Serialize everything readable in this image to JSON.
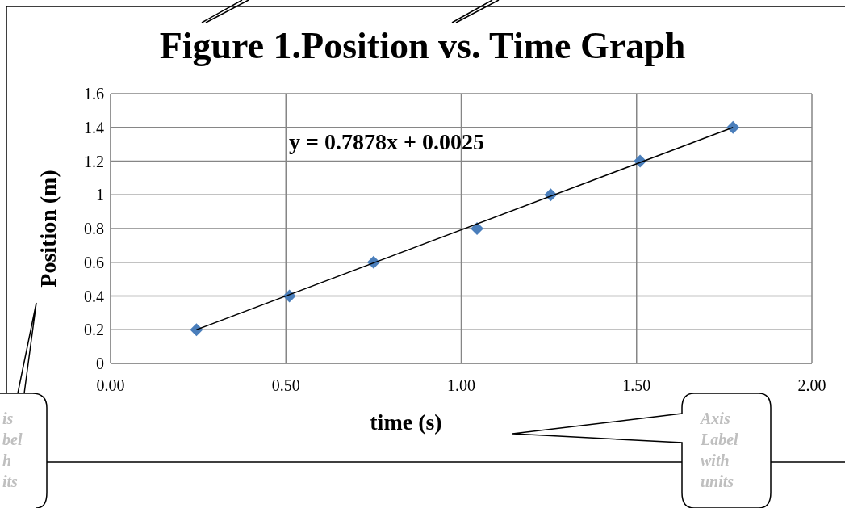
{
  "chart_data": {
    "type": "scatter",
    "title": "Figure 1.Position vs. Time Graph",
    "xlabel": "time (s)",
    "ylabel": "Position (m)",
    "x": [
      0.245,
      0.51,
      0.75,
      1.045,
      1.255,
      1.51,
      1.775
    ],
    "series": [
      {
        "color": "#4a7ebb",
        "values": [
          0.2,
          0.4,
          0.6,
          0.8,
          1.0,
          1.2,
          1.4
        ]
      },
      {
        "type": "line",
        "color": "#000000",
        "marker": "none",
        "x": [
          0.245,
          1.775
        ],
        "values": [
          0.2,
          1.4
        ]
      }
    ],
    "xlim": [
      0,
      2
    ],
    "xticks": [
      {
        "value": 0,
        "label": "0.00"
      },
      {
        "value": 0.5,
        "label": "0.50"
      },
      {
        "value": 1,
        "label": "1.00"
      },
      {
        "value": 1.5,
        "label": "1.50"
      },
      {
        "value": 2,
        "label": "2.00"
      }
    ],
    "ylim": [
      0,
      1.6
    ],
    "yticks": [
      0,
      0.2,
      0.4,
      0.6,
      0.8,
      1,
      1.2,
      1.4,
      1.6
    ],
    "grid": true,
    "marker": "diamond",
    "line_style": "solid",
    "annotations": [
      "y = 0.7878x + 0.0025",
      "Axis Label with units",
      "is bel h its"
    ]
  }
}
